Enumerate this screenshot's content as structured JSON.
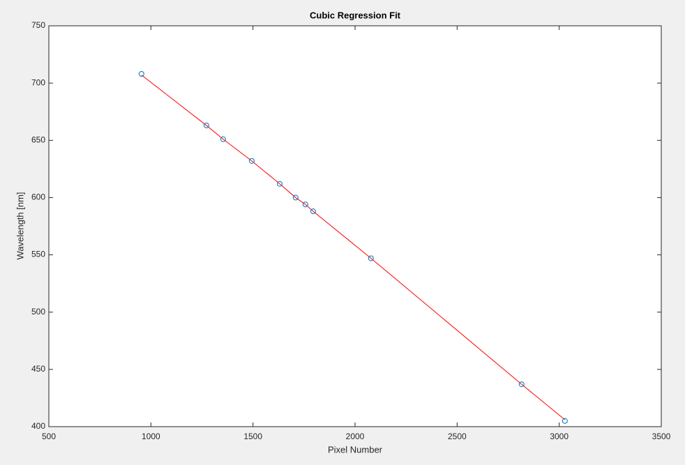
{
  "chart_data": {
    "type": "line",
    "title": "Cubic Regression Fit",
    "x_label": "Pixel Number",
    "y_label": "Wavelength [nm]",
    "x": [
      954,
      1272,
      1354,
      1494,
      1631,
      1709,
      1757,
      1795,
      2078,
      2816,
      3028
    ],
    "series": [
      {
        "mode": "markers",
        "color": "#0072bd",
        "values": [
          708,
          663,
          651,
          632,
          612,
          600,
          594,
          588,
          547,
          437,
          405
        ]
      },
      {
        "mode": "lines",
        "color": "#ff0000",
        "values": [
          707,
          663,
          651,
          632,
          612,
          600,
          594,
          588,
          547,
          437,
          406
        ]
      }
    ],
    "xlim": [
      500,
      3500
    ],
    "xticks": [
      500,
      1000,
      1500,
      2000,
      2500,
      3000,
      3500
    ],
    "ylim": [
      400,
      750
    ],
    "yticks": [
      400,
      450,
      500,
      550,
      600,
      650,
      700,
      750
    ]
  }
}
